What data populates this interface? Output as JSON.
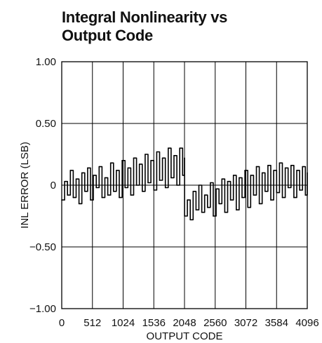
{
  "chart_data": {
    "type": "line",
    "title_lines": [
      "Integral Nonlinearity vs",
      "Output Code"
    ],
    "xlabel": "OUTPUT CODE",
    "ylabel": "INL ERROR (LSB)",
    "xlim": [
      0,
      4096
    ],
    "ylim": [
      -1.0,
      1.0
    ],
    "x_ticks": [
      0,
      512,
      1024,
      1536,
      2048,
      2560,
      3072,
      3584,
      4096
    ],
    "x_tick_labels": [
      "0",
      "512",
      "1024",
      "1536",
      "2048",
      "2560",
      "3072",
      "3584",
      "4096"
    ],
    "y_ticks": [
      1.0,
      0.5,
      0,
      -0.5,
      -1.0
    ],
    "y_tick_labels": [
      "1.00",
      "0.50",
      "0",
      "−0.50",
      "−1.00"
    ],
    "grid": true,
    "series": [
      {
        "color": "#000000",
        "x": [
          0,
          48,
          96,
          144,
          192,
          240,
          288,
          336,
          384,
          432,
          480,
          528,
          576,
          624,
          672,
          720,
          768,
          816,
          864,
          912,
          960,
          1008,
          1056,
          1104,
          1152,
          1200,
          1248,
          1296,
          1344,
          1392,
          1440,
          1488,
          1536,
          1584,
          1632,
          1680,
          1728,
          1776,
          1824,
          1872,
          1920,
          1968,
          2016,
          2047,
          2049,
          2096,
          2144,
          2192,
          2240,
          2288,
          2336,
          2384,
          2432,
          2480,
          2528,
          2576,
          2624,
          2672,
          2720,
          2768,
          2816,
          2864,
          2912,
          2960,
          3008,
          3056,
          3104,
          3152,
          3200,
          3248,
          3296,
          3344,
          3392,
          3440,
          3488,
          3536,
          3584,
          3632,
          3680,
          3728,
          3776,
          3824,
          3872,
          3920,
          3968,
          4016,
          4064,
          4096
        ],
        "y": [
          -0.12,
          0.03,
          -0.08,
          0.12,
          -0.1,
          0.05,
          -0.15,
          0.1,
          -0.05,
          0.14,
          -0.12,
          0.08,
          -0.02,
          0.15,
          -0.1,
          0.06,
          -0.08,
          0.18,
          -0.05,
          0.12,
          -0.1,
          0.2,
          -0.02,
          0.14,
          -0.08,
          0.22,
          0.0,
          0.17,
          -0.05,
          0.25,
          0.02,
          0.2,
          -0.04,
          0.27,
          0.04,
          0.22,
          -0.02,
          0.3,
          0.06,
          0.24,
          0.0,
          0.3,
          0.08,
          0.22,
          -0.25,
          -0.12,
          -0.28,
          -0.05,
          -0.2,
          0.0,
          -0.22,
          -0.08,
          -0.18,
          0.02,
          -0.25,
          -0.03,
          -0.15,
          0.05,
          -0.22,
          0.03,
          -0.12,
          0.08,
          -0.2,
          0.06,
          -0.1,
          0.12,
          -0.18,
          0.08,
          -0.08,
          0.15,
          -0.15,
          0.1,
          -0.05,
          0.16,
          -0.12,
          0.12,
          -0.06,
          0.18,
          -0.1,
          0.14,
          -0.02,
          0.16,
          -0.1,
          0.12,
          -0.04,
          0.15,
          -0.08,
          0.1
        ]
      }
    ]
  }
}
